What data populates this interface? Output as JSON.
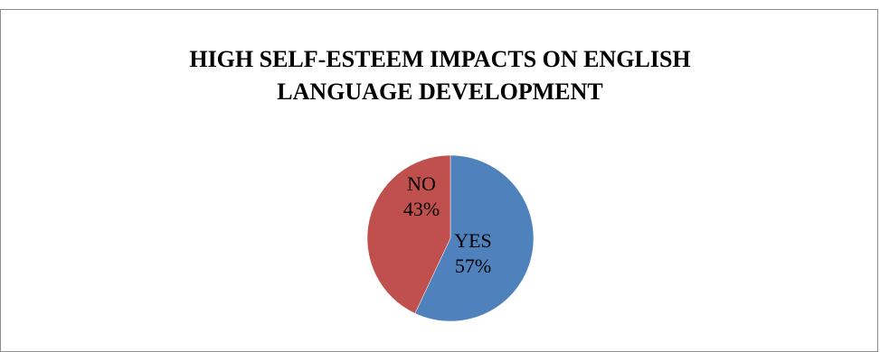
{
  "chart_data": {
    "type": "pie",
    "title_lines": [
      "HIGH SELF-ESTEEM IMPACTS ON ENGLISH",
      "LANGUAGE DEVELOPMENT"
    ],
    "slices": [
      {
        "category": "YES",
        "value": 57,
        "label": "57%",
        "color": "#4f81bd"
      },
      {
        "category": "NO",
        "value": 43,
        "label": "43%",
        "color": "#c0504d"
      }
    ],
    "start_angle_deg": 0,
    "direction": "clockwise",
    "legend": "none",
    "data_labels": "category and percentage inside slices"
  }
}
